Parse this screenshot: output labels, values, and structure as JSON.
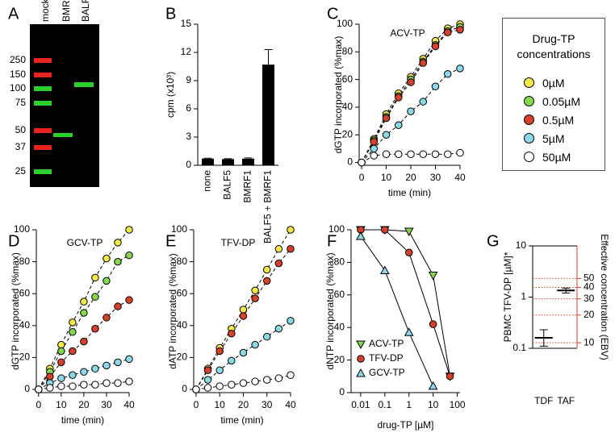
{
  "gel": {
    "panel": "A",
    "lanes": [
      "mock",
      "BMRF1",
      "BALF5"
    ],
    "markers": [
      250,
      150,
      100,
      75,
      50,
      37,
      25
    ]
  },
  "chart_data": [
    {
      "panel": "B",
      "type": "bar",
      "categories": [
        "none",
        "BALF5",
        "BMRF1",
        "BALF5 + BMRF1"
      ],
      "values": [
        0.7,
        0.65,
        0.7,
        10.7
      ],
      "errors": [
        0.05,
        0.05,
        0.08,
        1.6
      ],
      "color": "#000000",
      "ylabel": "cpm (x10³)",
      "ylim": [
        0,
        15
      ],
      "yticks": [
        0,
        3,
        6,
        9,
        12,
        15
      ]
    },
    {
      "panel": "C",
      "type": "line",
      "title": "ACV-TP",
      "xlabel": "time (min)",
      "ylabel": "dGTP incorporated (%max)",
      "line_style": "dashed",
      "legend_title": "Drug-TP concentrations",
      "x": [
        0,
        5,
        10,
        15,
        20,
        25,
        30,
        35,
        40
      ],
      "xlim": [
        -1,
        40
      ],
      "xticks": [
        0,
        10,
        20,
        30,
        40
      ],
      "ylim": [
        -2,
        100
      ],
      "yticks": [
        0,
        20,
        40,
        60,
        80,
        100
      ],
      "series": [
        {
          "name": "0µM",
          "color": "#f5e94a",
          "values": [
            0,
            17,
            35,
            50,
            62,
            75,
            88,
            97,
            100
          ]
        },
        {
          "name": "0.05µM",
          "color": "#86d64f",
          "values": [
            0,
            16,
            33,
            48,
            60,
            73,
            85,
            95,
            98
          ]
        },
        {
          "name": "0.5µM",
          "color": "#d9402b",
          "values": [
            0,
            15,
            32,
            47,
            58,
            72,
            84,
            94,
            96
          ]
        },
        {
          "name": "5µM",
          "color": "#8ad8e8",
          "values": [
            0,
            10,
            20,
            27,
            37,
            44,
            55,
            64,
            68
          ]
        },
        {
          "name": "50µM",
          "color": "#ffffff",
          "values": [
            0,
            5,
            6,
            6,
            6,
            6,
            6,
            6,
            7
          ]
        }
      ]
    },
    {
      "panel": "D",
      "type": "line",
      "title": "GCV-TP",
      "xlabel": "time (min)",
      "ylabel": "dGTP incorporated (%max)",
      "line_style": "dashed",
      "x": [
        0,
        5,
        10,
        15,
        20,
        25,
        30,
        35,
        40
      ],
      "xlim": [
        -1,
        40
      ],
      "xticks": [
        0,
        10,
        20,
        30,
        40
      ],
      "ylim": [
        -2,
        100
      ],
      "yticks": [
        0,
        20,
        40,
        60,
        80,
        100
      ],
      "series": [
        {
          "color": "#f5e94a",
          "values": [
            0,
            13,
            28,
            42,
            55,
            70,
            82,
            92,
            100
          ]
        },
        {
          "color": "#86d64f",
          "values": [
            0,
            11,
            24,
            36,
            48,
            58,
            68,
            80,
            84
          ]
        },
        {
          "color": "#d9402b",
          "values": [
            0,
            8,
            17,
            24,
            30,
            38,
            45,
            52,
            56
          ]
        },
        {
          "color": "#8ad8e8",
          "values": [
            0,
            4,
            7,
            9,
            11,
            13,
            15,
            17,
            19
          ]
        },
        {
          "color": "#ffffff",
          "values": [
            0,
            1,
            2,
            2,
            3,
            3,
            4,
            4,
            5
          ]
        }
      ]
    },
    {
      "panel": "E",
      "type": "line",
      "title": "TFV-DP",
      "xlabel": "time (min)",
      "ylabel": "dATP incorporated (%max)",
      "line_style": "dashed",
      "x": [
        0,
        5,
        10,
        15,
        20,
        25,
        30,
        35,
        40
      ],
      "xlim": [
        -1,
        40
      ],
      "xticks": [
        0,
        10,
        20,
        30,
        40
      ],
      "ylim": [
        -2,
        100
      ],
      "yticks": [
        0,
        20,
        40,
        60,
        80,
        100
      ],
      "series": [
        {
          "color": "#f5e94a",
          "values": [
            0,
            13,
            26,
            38,
            50,
            62,
            75,
            88,
            100
          ]
        },
        {
          "color": "#d9402b",
          "values": [
            0,
            12,
            24,
            35,
            46,
            57,
            68,
            79,
            88
          ]
        },
        {
          "color": "#8ad8e8",
          "values": [
            0,
            6,
            12,
            18,
            23,
            28,
            33,
            38,
            43
          ]
        },
        {
          "color": "#ffffff",
          "values": [
            0,
            1,
            2,
            3,
            4,
            5,
            6,
            7,
            9
          ]
        }
      ]
    },
    {
      "panel": "F",
      "type": "line",
      "xscale": "log",
      "xlabel": "drug-TP [µM]",
      "ylabel": "dNTP incorporated (%max)",
      "line_style": "solid",
      "legend": "lower left",
      "xlim": [
        0.004,
        130
      ],
      "xticks": [
        0.01,
        0.1,
        1,
        10,
        100
      ],
      "ylim": [
        0,
        100
      ],
      "yticks": [
        0,
        20,
        40,
        60,
        80,
        100
      ],
      "series": [
        {
          "name": "ACV-TP",
          "color": "#86d64f",
          "marker": "triangle-down",
          "x": [
            0.01,
            0.1,
            1,
            10,
            50
          ],
          "values": [
            100,
            100,
            99,
            72,
            10
          ]
        },
        {
          "name": "TFV-DP",
          "color": "#d9402b",
          "marker": "circle",
          "x": [
            0.01,
            0.1,
            1,
            10,
            50
          ],
          "values": [
            100,
            100,
            86,
            42,
            10
          ]
        },
        {
          "name": "GCV-TP",
          "color": "#8ad8e8",
          "marker": "triangle-up",
          "x": [
            0.01,
            0.1,
            1,
            10
          ],
          "values": [
            96,
            75,
            37,
            4
          ]
        }
      ]
    },
    {
      "panel": "G",
      "type": "range",
      "categories": [
        "TDF",
        "TAF"
      ],
      "values": [
        0.16,
        1.35
      ],
      "lower": [
        0.11,
        1.2
      ],
      "upper": [
        0.23,
        1.5
      ],
      "yscale": "log",
      "ylim": [
        0.1,
        10
      ],
      "yticks": [
        0.1,
        1,
        10
      ],
      "ylabel": "PBMC TFV-DP [µM]*",
      "y2label": "Effective concentration (EBV)",
      "y2scale": "log",
      "y2lim": [
        8.7,
        113
      ],
      "y2ticks": [
        10,
        20,
        30,
        40,
        50
      ],
      "y2color": "#d9402b"
    }
  ]
}
